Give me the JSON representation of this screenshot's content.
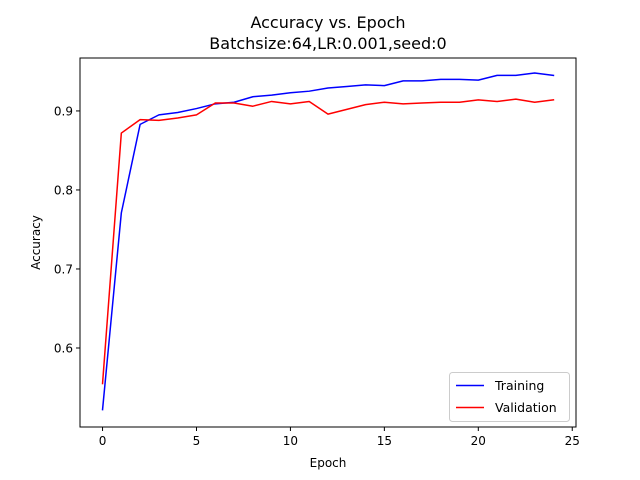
{
  "chart_data": {
    "type": "line",
    "title_line1": "Accuracy vs. Epoch",
    "title_line2": "Batchsize:64,LR:0.001,seed:0",
    "xlabel": "Epoch",
    "ylabel": "Accuracy",
    "xlim": [
      -1.2,
      25.2
    ],
    "ylim": [
      0.5,
      0.967
    ],
    "xticks": [
      0,
      5,
      10,
      15,
      20,
      25
    ],
    "yticks": [
      0.6,
      0.7,
      0.8,
      0.9
    ],
    "ytick_labels": [
      "0.6",
      "0.7",
      "0.8",
      "0.9"
    ],
    "grid": false,
    "legend_position": "lower right",
    "x": [
      0,
      1,
      2,
      3,
      4,
      5,
      6,
      7,
      8,
      9,
      10,
      11,
      12,
      13,
      14,
      15,
      16,
      17,
      18,
      19,
      20,
      21,
      22,
      23,
      24
    ],
    "series": [
      {
        "name": "Training",
        "color": "#0000ff",
        "values": [
          0.522,
          0.771,
          0.883,
          0.895,
          0.898,
          0.903,
          0.909,
          0.911,
          0.918,
          0.92,
          0.923,
          0.925,
          0.929,
          0.931,
          0.933,
          0.932,
          0.938,
          0.938,
          0.94,
          0.94,
          0.939,
          0.945,
          0.945,
          0.948,
          0.945
        ]
      },
      {
        "name": "Validation",
        "color": "#ff0000",
        "values": [
          0.555,
          0.872,
          0.889,
          0.888,
          0.891,
          0.895,
          0.91,
          0.91,
          0.906,
          0.912,
          0.909,
          0.912,
          0.896,
          0.902,
          0.908,
          0.911,
          0.909,
          0.91,
          0.911,
          0.911,
          0.914,
          0.912,
          0.915,
          0.911,
          0.914
        ]
      }
    ]
  }
}
